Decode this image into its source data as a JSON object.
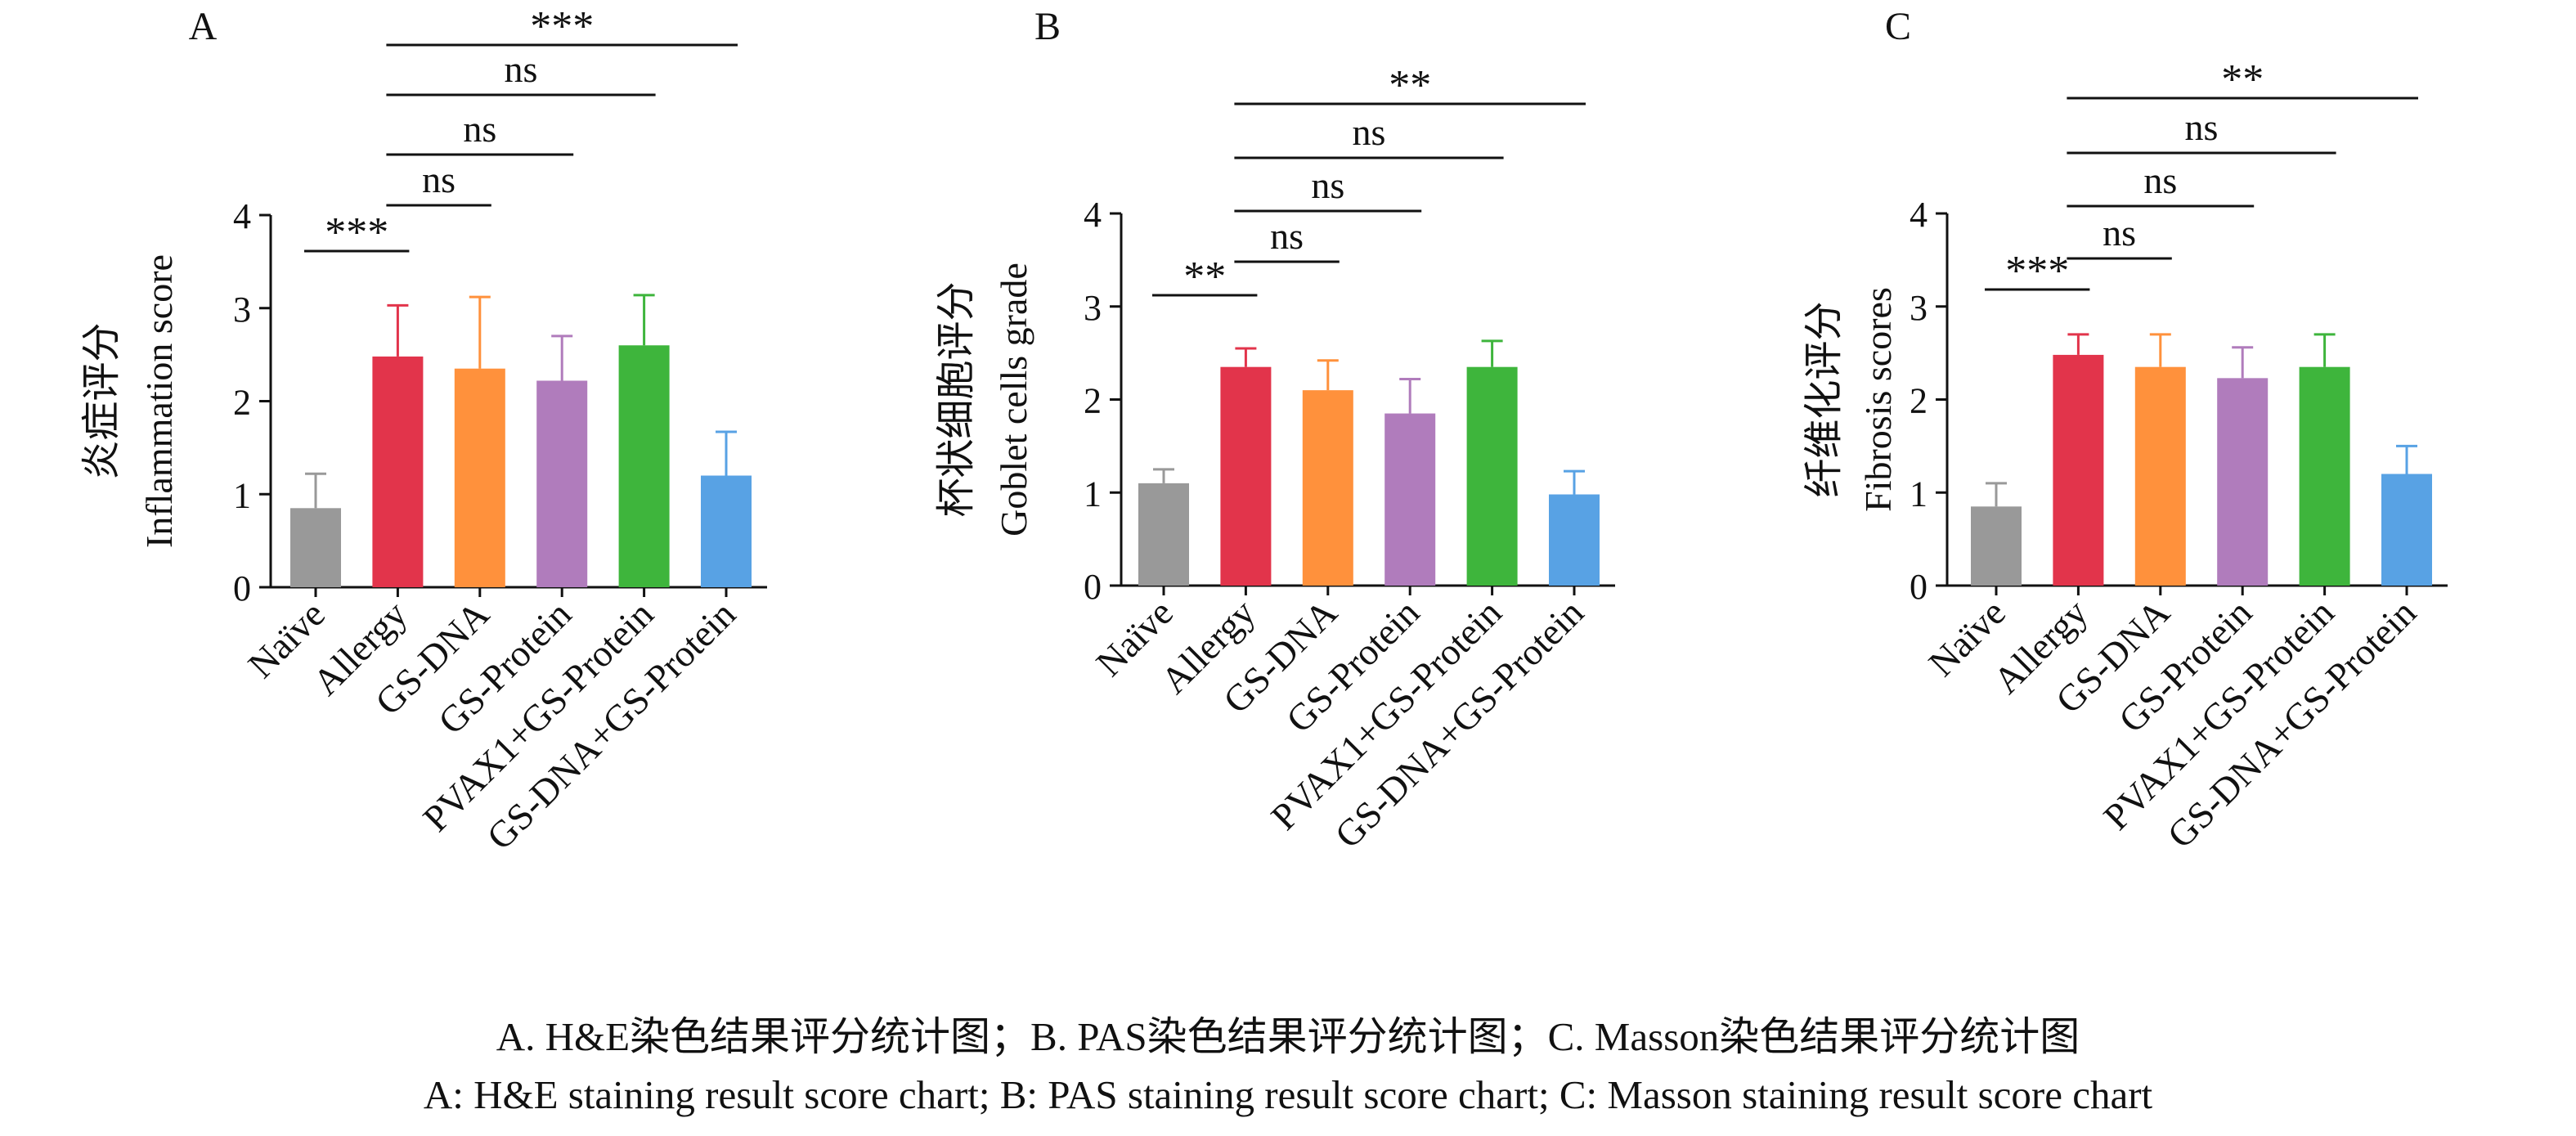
{
  "colors": {
    "Naïve": "#999999",
    "Allergy": "#e2344b",
    "GS-DNA": "#ff913c",
    "GS-Protein": "#b07cbc",
    "PVAX1+GS-Protein": "#3eb53c",
    "GS-DNA+GS-Protein": "#58a2e4"
  },
  "chart_data": [
    {
      "type": "bar",
      "panel_label": "A",
      "ylabel_zh": "炎症评分",
      "ylabel_en": "Inflammation score",
      "ylim": [
        0,
        4
      ],
      "yticks": [
        0,
        1,
        2,
        3,
        4
      ],
      "categories": [
        "Naïve",
        "Allergy",
        "GS-DNA",
        "GS-Protein",
        "PVAX1+GS-Protein",
        "GS-DNA+GS-Protein"
      ],
      "values": [
        0.85,
        2.48,
        2.35,
        2.22,
        2.6,
        1.2
      ],
      "errors": [
        0.37,
        0.55,
        0.77,
        0.48,
        0.54,
        0.47
      ],
      "significance": [
        {
          "from": 0,
          "to": 1,
          "label": "***"
        },
        {
          "from": 1,
          "to": 2,
          "label": "ns"
        },
        {
          "from": 1,
          "to": 3,
          "label": "ns"
        },
        {
          "from": 1,
          "to": 4,
          "label": "ns"
        },
        {
          "from": 1,
          "to": 5,
          "label": "***"
        }
      ]
    },
    {
      "type": "bar",
      "panel_label": "B",
      "ylabel_zh": "杯状细胞评分",
      "ylabel_en": "Goblet cells grade",
      "ylim": [
        0,
        4
      ],
      "yticks": [
        0,
        1,
        2,
        3,
        4
      ],
      "categories": [
        "Naïve",
        "Allergy",
        "GS-DNA",
        "GS-Protein",
        "PVAX1+GS-Protein",
        "GS-DNA+GS-Protein"
      ],
      "values": [
        1.1,
        2.35,
        2.1,
        1.85,
        2.35,
        0.98
      ],
      "errors": [
        0.15,
        0.2,
        0.32,
        0.37,
        0.28,
        0.25
      ],
      "significance": [
        {
          "from": 0,
          "to": 1,
          "label": "**"
        },
        {
          "from": 1,
          "to": 2,
          "label": "ns"
        },
        {
          "from": 1,
          "to": 3,
          "label": "ns"
        },
        {
          "from": 1,
          "to": 4,
          "label": "ns"
        },
        {
          "from": 1,
          "to": 5,
          "label": "**"
        }
      ]
    },
    {
      "type": "bar",
      "panel_label": "C",
      "ylabel_zh": "纤维化评分",
      "ylabel_en": "Fibrosis scores",
      "ylim": [
        0,
        4
      ],
      "yticks": [
        0,
        1,
        2,
        3,
        4
      ],
      "categories": [
        "Naïve",
        "Allergy",
        "GS-DNA",
        "GS-Protein",
        "PVAX1+GS-Protein",
        "GS-DNA+GS-Protein"
      ],
      "values": [
        0.85,
        2.48,
        2.35,
        2.23,
        2.35,
        1.2
      ],
      "errors": [
        0.25,
        0.22,
        0.35,
        0.33,
        0.35,
        0.3
      ],
      "significance": [
        {
          "from": 0,
          "to": 1,
          "label": "***"
        },
        {
          "from": 1,
          "to": 2,
          "label": "ns"
        },
        {
          "from": 1,
          "to": 3,
          "label": "ns"
        },
        {
          "from": 1,
          "to": 4,
          "label": "ns"
        },
        {
          "from": 1,
          "to": 5,
          "label": "**"
        }
      ]
    }
  ],
  "caption_zh": "A. H&E染色结果评分统计图；B. PAS染色结果评分统计图；C. Masson染色结果评分统计图",
  "caption_en": "A: H&E staining result score chart; B: PAS staining result score chart; C: Masson staining result score chart"
}
